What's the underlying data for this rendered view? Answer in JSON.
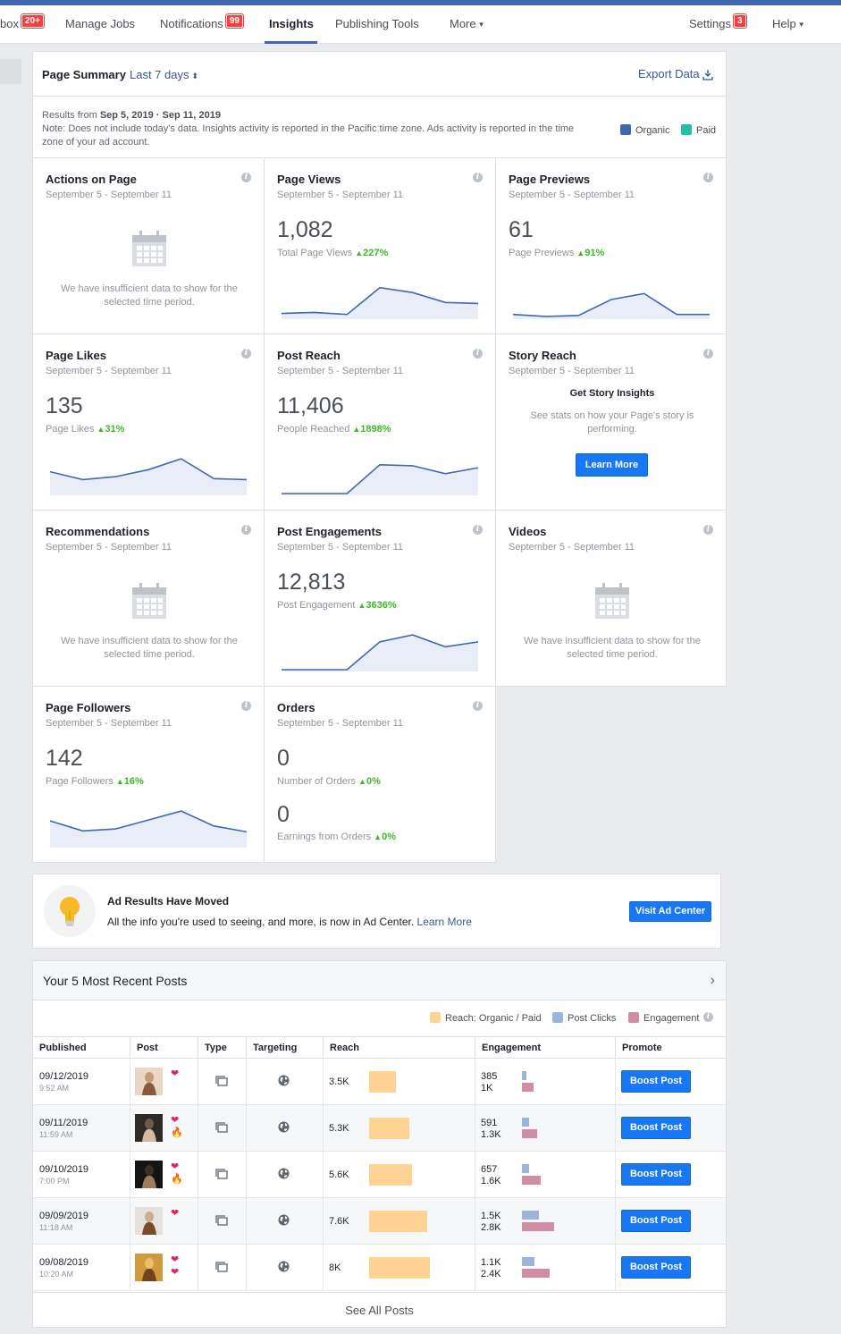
{
  "nav": {
    "inbox_label": "box",
    "inbox_badge": "20+",
    "manage_jobs": "Manage Jobs",
    "notifications": "Notifications",
    "notifications_badge": "99",
    "insights": "Insights",
    "publishing_tools": "Publishing Tools",
    "more": "More",
    "settings": "Settings",
    "settings_badge": "3",
    "help": "Help"
  },
  "summary": {
    "title": "Page Summary",
    "range": "Last 7 days",
    "export": "Export Data",
    "results_prefix": "Results from",
    "results_range": "Sep 5, 2019 · Sep 11, 2019",
    "note": "Note: Does not include today's data. Insights activity is reported in the Pacific time zone. Ads activity is reported in the time zone of your ad account.",
    "legend_organic": "Organic",
    "legend_paid": "Paid",
    "organic_color": "#4267b2",
    "paid_color": "#20c1a8"
  },
  "cards": {
    "date_range": "September 5 - September 11",
    "insufficient": "We have insufficient data to show for the selected time period.",
    "actions": {
      "title": "Actions on Page"
    },
    "page_views": {
      "title": "Page Views",
      "value": "1,082",
      "sub": "Total Page Views",
      "pct": "227%",
      "spark": [
        4,
        5,
        3,
        30,
        25,
        15,
        14
      ]
    },
    "page_previews": {
      "title": "Page Previews",
      "value": "61",
      "sub": "Page Previews",
      "pct": "91%",
      "spark": [
        3,
        1,
        2,
        18,
        24,
        3,
        3
      ]
    },
    "page_likes": {
      "title": "Page Likes",
      "value": "135",
      "sub": "Page Likes",
      "pct": "31%",
      "spark": [
        22,
        14,
        17,
        24,
        35,
        15,
        14
      ]
    },
    "post_reach": {
      "title": "Post Reach",
      "value": "11,406",
      "sub": "People Reached",
      "pct": "1898%",
      "spark": [
        0,
        0,
        0,
        29,
        28,
        20,
        26
      ]
    },
    "story_reach": {
      "title": "Story Reach",
      "heading": "Get Story Insights",
      "text": "See stats on how your Page's story is performing.",
      "button": "Learn More"
    },
    "recommendations": {
      "title": "Recommendations"
    },
    "post_engagements": {
      "title": "Post Engagements",
      "value": "12,813",
      "sub": "Post Engagement",
      "pct": "3636%",
      "spark": [
        0,
        0,
        0,
        28,
        35,
        23,
        28
      ]
    },
    "videos": {
      "title": "Videos"
    },
    "page_followers": {
      "title": "Page Followers",
      "value": "142",
      "sub": "Page Followers",
      "pct": "16%",
      "spark": [
        25,
        15,
        17,
        26,
        35,
        20,
        14
      ]
    },
    "orders": {
      "title": "Orders",
      "value": "0",
      "sub": "Number of Orders",
      "pct": "0%",
      "value2": "0",
      "sub2": "Earnings from Orders",
      "pct2": "0%"
    }
  },
  "ad": {
    "title": "Ad Results Have Moved",
    "text": "All the info you're used to seeing, and more, is now in Ad Center.",
    "link": "Learn More",
    "button": "Visit Ad Center"
  },
  "posts": {
    "title": "Your 5 Most Recent Posts",
    "legend_reach": "Reach: Organic / Paid",
    "legend_clicks": "Post Clicks",
    "legend_engagement": "Engagement",
    "reach_color": "#ffd394",
    "clicks_color": "#9cb4d8",
    "engagement_color": "#d18ca6",
    "headers": [
      "Published",
      "Post",
      "Type",
      "Targeting",
      "Reach",
      "Engagement",
      "Promote"
    ],
    "boost_label": "Boost Post",
    "see_all": "See All Posts",
    "rows": [
      {
        "date": "09/12/2019",
        "time": "9:52 AM",
        "emojis": [
          "❤"
        ],
        "reach": "3.5K",
        "reach_value": 3500,
        "clicks": "385",
        "clicks_value": 385,
        "engagement": "1K",
        "engagement_value": 1000
      },
      {
        "date": "09/11/2019",
        "time": "11:59 AM",
        "emojis": [
          "❤",
          "🔥"
        ],
        "reach": "5.3K",
        "reach_value": 5300,
        "clicks": "591",
        "clicks_value": 591,
        "engagement": "1.3K",
        "engagement_value": 1300
      },
      {
        "date": "09/10/2019",
        "time": "7:00 PM",
        "emojis": [
          "❤",
          "🔥"
        ],
        "reach": "5.6K",
        "reach_value": 5600,
        "clicks": "657",
        "clicks_value": 657,
        "engagement": "1.6K",
        "engagement_value": 1600
      },
      {
        "date": "09/09/2019",
        "time": "11:18 AM",
        "emojis": [
          "❤"
        ],
        "reach": "7.6K",
        "reach_value": 7600,
        "clicks": "1.5K",
        "clicks_value": 1500,
        "engagement": "2.8K",
        "engagement_value": 2800
      },
      {
        "date": "09/08/2019",
        "time": "10:20 AM",
        "emojis": [
          "❤",
          "❤"
        ],
        "reach": "8K",
        "reach_value": 8000,
        "clicks": "1.1K",
        "clicks_value": 1100,
        "engagement": "2.4K",
        "engagement_value": 2400
      }
    ]
  }
}
